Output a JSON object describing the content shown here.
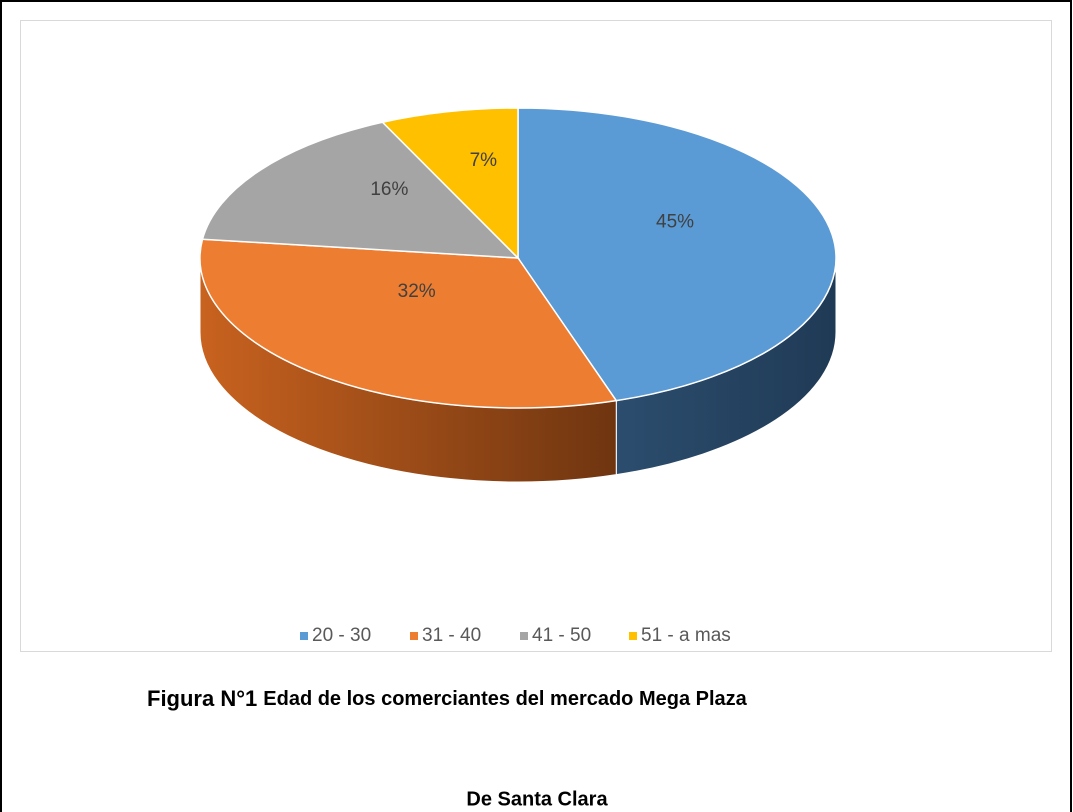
{
  "chart_data": {
    "type": "pie3d",
    "categories": [
      "20 - 30",
      "31 - 40",
      "41 - 50",
      "51 - a mas"
    ],
    "values": [
      45,
      32,
      16,
      7
    ],
    "value_labels": [
      "45%",
      "32%",
      "16%",
      "7%"
    ],
    "colors": [
      "#5b9bd5",
      "#ed7d31",
      "#a5a5a5",
      "#ffc000"
    ],
    "side_colors": [
      [
        "#2c4d6e",
        "#1f3a55"
      ],
      [
        "#c8621f",
        "#6f3510"
      ],
      [
        "#8a8a8a",
        "#5a5a5a"
      ],
      [
        "#d9a300",
        "#9a7400"
      ]
    ],
    "legend": "bottom",
    "figure_label": "Figura N°1",
    "title": [
      "Edad de los comerciantes del mercado Mega Plaza",
      "De Santa Clara"
    ]
  }
}
